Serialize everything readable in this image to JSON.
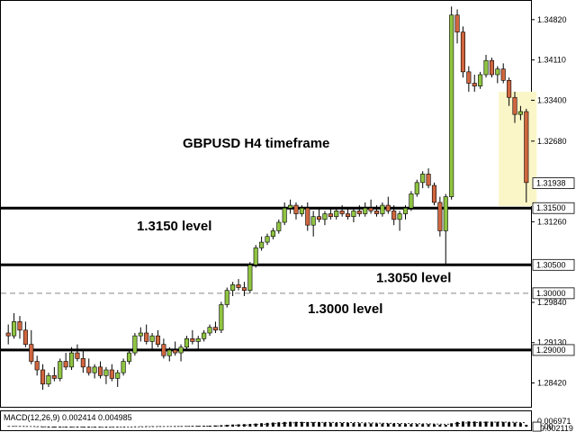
{
  "chart_data": {
    "type": "candlestick",
    "symbol": "GBPUSD",
    "timeframe": "H4",
    "title": "GBPUSD H4 timeframe",
    "colors": {
      "bull": "#8fc441",
      "bear": "#d0663f",
      "wick": "#000000",
      "highlight": "#fbf6c8"
    },
    "price_axis": {
      "range": [
        1.28,
        1.3515
      ],
      "ticks": [
        "1.34820",
        "1.34110",
        "1.33400",
        "1.32680",
        "1.31260",
        "1.29840",
        "1.29130",
        "1.28420"
      ],
      "badges": [
        "1.31938",
        "1.31500",
        "1.30500",
        "1.30000",
        "1.29000"
      ]
    },
    "levels": [
      {
        "price": 1.315,
        "style": "solid",
        "label": "1.3150 level"
      },
      {
        "price": 1.305,
        "style": "solid",
        "label": "1.3050 level"
      },
      {
        "price": 1.3,
        "style": "dashed",
        "label": "1.3000 level"
      },
      {
        "price": 1.29,
        "style": "solid",
        "label": ""
      }
    ],
    "candles": [
      [
        1.293,
        1.2945,
        1.291,
        1.2925
      ],
      [
        1.2925,
        1.2965,
        1.292,
        1.295
      ],
      [
        1.295,
        1.296,
        1.292,
        1.2935
      ],
      [
        1.2935,
        1.295,
        1.2905,
        1.291
      ],
      [
        1.291,
        1.2935,
        1.2875,
        1.288
      ],
      [
        1.288,
        1.289,
        1.2855,
        1.2865
      ],
      [
        1.2865,
        1.2875,
        1.283,
        1.284
      ],
      [
        1.284,
        1.286,
        1.2835,
        1.2855
      ],
      [
        1.2855,
        1.287,
        1.2845,
        1.285
      ],
      [
        1.285,
        1.2885,
        1.2845,
        1.288
      ],
      [
        1.288,
        1.2895,
        1.2865,
        1.287
      ],
      [
        1.287,
        1.2905,
        1.2865,
        1.2895
      ],
      [
        1.2895,
        1.291,
        1.288,
        1.2885
      ],
      [
        1.2885,
        1.29,
        1.286,
        1.287
      ],
      [
        1.287,
        1.2885,
        1.2855,
        1.286
      ],
      [
        1.286,
        1.2875,
        1.285,
        1.287
      ],
      [
        1.287,
        1.288,
        1.285,
        1.2855
      ],
      [
        1.2855,
        1.287,
        1.284,
        1.2865
      ],
      [
        1.2865,
        1.2875,
        1.2845,
        1.285
      ],
      [
        1.285,
        1.2865,
        1.2835,
        1.286
      ],
      [
        1.286,
        1.2885,
        1.2855,
        1.288
      ],
      [
        1.288,
        1.29,
        1.2875,
        1.2895
      ],
      [
        1.2895,
        1.293,
        1.289,
        1.2925
      ],
      [
        1.2925,
        1.294,
        1.2915,
        1.293
      ],
      [
        1.293,
        1.2945,
        1.291,
        1.2915
      ],
      [
        1.2915,
        1.293,
        1.29,
        1.2925
      ],
      [
        1.2925,
        1.2935,
        1.2905,
        1.291
      ],
      [
        1.291,
        1.292,
        1.2885,
        1.289
      ],
      [
        1.289,
        1.2905,
        1.288,
        1.29
      ],
      [
        1.29,
        1.2915,
        1.289,
        1.2895
      ],
      [
        1.2895,
        1.291,
        1.288,
        1.2905
      ],
      [
        1.2905,
        1.2925,
        1.29,
        1.292
      ],
      [
        1.292,
        1.2935,
        1.291,
        1.2915
      ],
      [
        1.2915,
        1.2925,
        1.29,
        1.292
      ],
      [
        1.292,
        1.2935,
        1.2915,
        1.293
      ],
      [
        1.293,
        1.2945,
        1.2925,
        1.294
      ],
      [
        1.294,
        1.295,
        1.293,
        1.2935
      ],
      [
        1.2935,
        1.2985,
        1.293,
        1.298
      ],
      [
        1.298,
        1.301,
        1.2975,
        1.3005
      ],
      [
        1.3005,
        1.302,
        1.2995,
        1.3015
      ],
      [
        1.3015,
        1.3025,
        1.3005,
        1.301
      ],
      [
        1.301,
        1.302,
        1.2995,
        1.3005
      ],
      [
        1.3005,
        1.3055,
        1.3,
        1.305
      ],
      [
        1.305,
        1.3085,
        1.3045,
        1.308
      ],
      [
        1.308,
        1.31,
        1.3075,
        1.309
      ],
      [
        1.309,
        1.3105,
        1.3085,
        1.31
      ],
      [
        1.31,
        1.3115,
        1.3095,
        1.311
      ],
      [
        1.311,
        1.313,
        1.3105,
        1.3125
      ],
      [
        1.3125,
        1.316,
        1.312,
        1.315
      ],
      [
        1.315,
        1.3165,
        1.314,
        1.3155
      ],
      [
        1.3155,
        1.316,
        1.313,
        1.314
      ],
      [
        1.314,
        1.3155,
        1.3135,
        1.315
      ],
      [
        1.315,
        1.316,
        1.311,
        1.312
      ],
      [
        1.312,
        1.3145,
        1.31,
        1.3135
      ],
      [
        1.3135,
        1.315,
        1.3125,
        1.313
      ],
      [
        1.313,
        1.3145,
        1.312,
        1.314
      ],
      [
        1.314,
        1.315,
        1.313,
        1.3135
      ],
      [
        1.3135,
        1.315,
        1.313,
        1.3145
      ],
      [
        1.3145,
        1.3155,
        1.3135,
        1.314
      ],
      [
        1.314,
        1.315,
        1.313,
        1.3135
      ],
      [
        1.3135,
        1.315,
        1.3125,
        1.3145
      ],
      [
        1.3145,
        1.3155,
        1.3135,
        1.314
      ],
      [
        1.314,
        1.316,
        1.3135,
        1.315
      ],
      [
        1.315,
        1.3165,
        1.314,
        1.3145
      ],
      [
        1.3145,
        1.3155,
        1.3135,
        1.314
      ],
      [
        1.314,
        1.316,
        1.3135,
        1.3155
      ],
      [
        1.3155,
        1.317,
        1.314,
        1.3145
      ],
      [
        1.3145,
        1.3155,
        1.312,
        1.313
      ],
      [
        1.313,
        1.3145,
        1.311,
        1.314
      ],
      [
        1.314,
        1.3155,
        1.313,
        1.315
      ],
      [
        1.315,
        1.318,
        1.3145,
        1.3175
      ],
      [
        1.3175,
        1.32,
        1.317,
        1.3195
      ],
      [
        1.3195,
        1.3215,
        1.3185,
        1.321
      ],
      [
        1.321,
        1.322,
        1.3185,
        1.319
      ],
      [
        1.319,
        1.3195,
        1.3155,
        1.316
      ],
      [
        1.316,
        1.317,
        1.31,
        1.311
      ],
      [
        1.311,
        1.3175,
        1.305,
        1.317
      ],
      [
        1.317,
        1.3505,
        1.3165,
        1.349
      ],
      [
        1.349,
        1.35,
        1.344,
        1.346
      ],
      [
        1.346,
        1.347,
        1.338,
        1.339
      ],
      [
        1.339,
        1.34,
        1.3355,
        1.337
      ],
      [
        1.337,
        1.3385,
        1.3355,
        1.3365
      ],
      [
        1.3365,
        1.339,
        1.336,
        1.3385
      ],
      [
        1.3385,
        1.342,
        1.338,
        1.341
      ],
      [
        1.341,
        1.3415,
        1.338,
        1.3385
      ],
      [
        1.3385,
        1.34,
        1.337,
        1.3395
      ],
      [
        1.3395,
        1.3405,
        1.337,
        1.3375
      ],
      [
        1.3375,
        1.338,
        1.333,
        1.3345
      ],
      [
        1.3345,
        1.3355,
        1.33,
        1.3315
      ],
      [
        1.3315,
        1.333,
        1.3305,
        1.332
      ],
      [
        1.332,
        1.3325,
        1.316,
        1.3195
      ]
    ],
    "macd": {
      "label": "MACD(12,26,9) 0.002414 0.004985",
      "ticks": [
        "0.006971",
        "0.00",
        "-0.002119"
      ],
      "range": [
        -0.0023,
        0.0072
      ],
      "hist": [
        0.0005,
        0.0006,
        0.0004,
        0.0002,
        0.0,
        -0.0004,
        -0.0008,
        -0.001,
        -0.0011,
        -0.0011,
        -0.001,
        -0.0009,
        -0.0008,
        -0.0009,
        -0.001,
        -0.0009,
        -0.0008,
        -0.0007,
        -0.0006,
        -0.0005,
        -0.0003,
        -0.0001,
        0.0002,
        0.0004,
        0.0005,
        0.0005,
        0.0004,
        0.0003,
        0.0003,
        0.0004,
        0.0005,
        0.0007,
        0.0009,
        0.001,
        0.0011,
        0.0013,
        0.0015,
        0.0019,
        0.0024,
        0.0028,
        0.0031,
        0.0033,
        0.0036,
        0.0041,
        0.0046,
        0.005,
        0.0054,
        0.0058,
        0.0062,
        0.0064,
        0.0064,
        0.0063,
        0.0061,
        0.0059,
        0.0057,
        0.0055,
        0.0053,
        0.0051,
        0.005,
        0.0049,
        0.0047,
        0.0045,
        0.0044,
        0.0043,
        0.0042,
        0.0041,
        0.0041,
        0.004,
        0.0037,
        0.0035,
        0.0034,
        0.0034,
        0.0034,
        0.0033,
        0.0031,
        0.0026,
        0.0024,
        0.0045,
        0.0062,
        0.0068,
        0.0069,
        0.0068,
        0.0067,
        0.0067,
        0.0066,
        0.0064,
        0.0062,
        0.0058,
        0.0053,
        0.0047,
        0.0024
      ],
      "signal": [
        0.0004,
        0.0004,
        0.0004,
        0.0003,
        0.0002,
        0.0001,
        -0.0001,
        -0.0003,
        -0.0005,
        -0.0006,
        -0.0007,
        -0.0007,
        -0.0007,
        -0.0007,
        -0.0008,
        -0.0008,
        -0.0008,
        -0.0008,
        -0.0007,
        -0.0007,
        -0.0006,
        -0.0005,
        -0.0003,
        -0.0002,
        -0.0001,
        0.0,
        0.0001,
        0.0002,
        0.0002,
        0.0003,
        0.0003,
        0.0004,
        0.0005,
        0.0006,
        0.0007,
        0.0008,
        0.0009,
        0.0011,
        0.0013,
        0.0016,
        0.0019,
        0.0021,
        0.0024,
        0.0027,
        0.0031,
        0.0034,
        0.0038,
        0.0042,
        0.0046,
        0.0049,
        0.0052,
        0.0054,
        0.0056,
        0.0057,
        0.0057,
        0.0057,
        0.0057,
        0.0056,
        0.0055,
        0.0054,
        0.0053,
        0.0052,
        0.005,
        0.0049,
        0.0048,
        0.0046,
        0.0045,
        0.0044,
        0.0043,
        0.0041,
        0.004,
        0.0039,
        0.0038,
        0.0037,
        0.0036,
        0.0034,
        0.0032,
        0.0035,
        0.004,
        0.0046,
        0.0051,
        0.0054,
        0.0057,
        0.0058,
        0.006,
        0.006,
        0.006,
        0.0059,
        0.0058,
        0.0056,
        0.005
      ]
    }
  }
}
